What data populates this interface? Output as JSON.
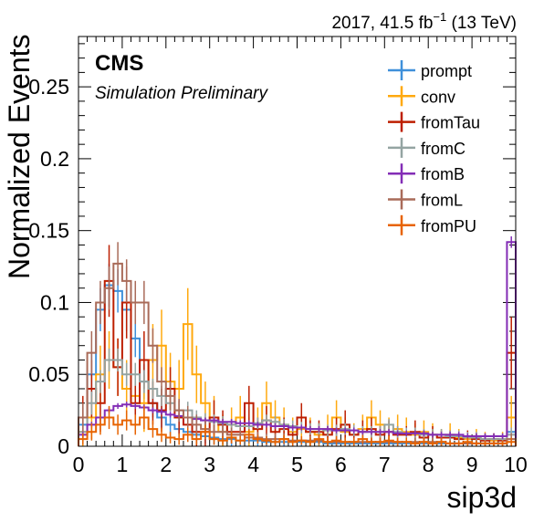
{
  "header": {
    "lumi_left": "2017, 41.5 fb",
    "lumi_exp": "−1",
    "lumi_right": " (13 TeV)",
    "experiment": "CMS",
    "status": "Simulation Preliminary"
  },
  "chart_data": {
    "type": "histogram-step",
    "xlabel": "sip3d",
    "ylabel": "Normalized Events",
    "xlim": [
      0,
      10
    ],
    "ylim": [
      0,
      0.285
    ],
    "xticks": [
      "0",
      "1",
      "2",
      "3",
      "4",
      "5",
      "6",
      "7",
      "8",
      "9",
      "10"
    ],
    "yticks": [
      "0",
      "0.05",
      "0.1",
      "0.15",
      "0.2",
      "0.25"
    ],
    "ytick_values": [
      0,
      0.05,
      0.1,
      0.15,
      0.2,
      0.25
    ],
    "bins": {
      "n": 50,
      "width": 0.2,
      "start": 0
    },
    "legend_position": "top-right",
    "series": [
      {
        "name": "prompt",
        "color": "#3f90da",
        "values": [
          0.015,
          0.05,
          0.095,
          0.112,
          0.108,
          0.095,
          0.075,
          0.045,
          0.03,
          0.02,
          0.015,
          0.012,
          0.01,
          0.008,
          0.007,
          0.006,
          0.005,
          0.005,
          0.004,
          0.004,
          0.004,
          0.003,
          0.003,
          0.003,
          0.003,
          0.003,
          0.003,
          0.003,
          0.002,
          0.002,
          0.002,
          0.002,
          0.002,
          0.002,
          0.002,
          0.002,
          0.002,
          0.002,
          0.002,
          0.002,
          0.002,
          0.002,
          0.002,
          0.002,
          0.002,
          0.002,
          0.002,
          0.002,
          0.002,
          0.01
        ],
        "errors": [
          0.012,
          0.015,
          0.015,
          0.015,
          0.015,
          0.015,
          0.013,
          0.012,
          0.01,
          0.008,
          0.008,
          0.007,
          0.006,
          0.006,
          0.005,
          0.005,
          0.005,
          0.005,
          0.004,
          0.004,
          0.004,
          0.004,
          0.004,
          0.004,
          0.003,
          0.003,
          0.003,
          0.003,
          0.003,
          0.003,
          0.003,
          0.003,
          0.003,
          0.003,
          0.003,
          0.003,
          0.003,
          0.003,
          0.003,
          0.003,
          0.003,
          0.003,
          0.003,
          0.003,
          0.003,
          0.003,
          0.003,
          0.003,
          0.003,
          0.008
        ]
      },
      {
        "name": "conv",
        "color": "#ffa90e",
        "values": [
          0.01,
          0.02,
          0.05,
          0.06,
          0.055,
          0.04,
          0.035,
          0.03,
          0.06,
          0.07,
          0.045,
          0.04,
          0.085,
          0.05,
          0.03,
          0.02,
          0.01,
          0.015,
          0.02,
          0.01,
          0.015,
          0.03,
          0.02,
          0.015,
          0.01,
          0.012,
          0.01,
          0.008,
          0.012,
          0.02,
          0.01,
          0.008,
          0.012,
          0.02,
          0.015,
          0.01,
          0.012,
          0.01,
          0.008,
          0.01,
          0.008,
          0.006,
          0.008,
          0.006,
          0.005,
          0.006,
          0.005,
          0.004,
          0.005,
          0.02
        ],
        "errors": [
          0.012,
          0.015,
          0.02,
          0.02,
          0.02,
          0.02,
          0.02,
          0.02,
          0.025,
          0.025,
          0.02,
          0.02,
          0.025,
          0.02,
          0.015,
          0.015,
          0.012,
          0.012,
          0.015,
          0.01,
          0.012,
          0.015,
          0.012,
          0.012,
          0.01,
          0.01,
          0.01,
          0.008,
          0.01,
          0.012,
          0.01,
          0.008,
          0.01,
          0.012,
          0.01,
          0.01,
          0.01,
          0.01,
          0.008,
          0.008,
          0.008,
          0.006,
          0.008,
          0.006,
          0.005,
          0.006,
          0.005,
          0.005,
          0.005,
          0.015
        ]
      },
      {
        "name": "fromTau",
        "color": "#bd1f01",
        "values": [
          0.02,
          0.04,
          0.03,
          0.115,
          0.055,
          0.1,
          0.03,
          0.06,
          0.03,
          0.025,
          0.04,
          0.02,
          0.015,
          0.01,
          0.01,
          0.02,
          0.015,
          0.01,
          0.01,
          0.03,
          0.012,
          0.018,
          0.01,
          0.012,
          0.008,
          0.02,
          0.01,
          0.01,
          0.008,
          0.012,
          0.015,
          0.008,
          0.01,
          0.012,
          0.008,
          0.01,
          0.008,
          0.008,
          0.01,
          0.006,
          0.008,
          0.006,
          0.006,
          0.005,
          0.006,
          0.005,
          0.004,
          0.005,
          0.004,
          0.065
        ],
        "errors": [
          0.015,
          0.02,
          0.02,
          0.025,
          0.02,
          0.025,
          0.015,
          0.02,
          0.015,
          0.015,
          0.015,
          0.012,
          0.01,
          0.01,
          0.01,
          0.012,
          0.01,
          0.008,
          0.008,
          0.012,
          0.008,
          0.01,
          0.008,
          0.008,
          0.006,
          0.01,
          0.008,
          0.008,
          0.006,
          0.008,
          0.01,
          0.006,
          0.008,
          0.008,
          0.006,
          0.008,
          0.006,
          0.006,
          0.008,
          0.005,
          0.006,
          0.005,
          0.005,
          0.005,
          0.005,
          0.004,
          0.004,
          0.004,
          0.004,
          0.025
        ]
      },
      {
        "name": "fromC",
        "color": "#94a4a2",
        "values": [
          0.01,
          0.03,
          0.045,
          0.06,
          0.06,
          0.05,
          0.05,
          0.045,
          0.04,
          0.035,
          0.03,
          0.025,
          0.025,
          0.02,
          0.018,
          0.017,
          0.016,
          0.015,
          0.014,
          0.014,
          0.016,
          0.018,
          0.017,
          0.015,
          0.014,
          0.013,
          0.012,
          0.012,
          0.011,
          0.011,
          0.012,
          0.011,
          0.01,
          0.01,
          0.01,
          0.015,
          0.01,
          0.009,
          0.009,
          0.008,
          0.008,
          0.008,
          0.007,
          0.007,
          0.006,
          0.006,
          0.005,
          0.005,
          0.005,
          0.008
        ],
        "errors": [
          0.006,
          0.008,
          0.008,
          0.008,
          0.008,
          0.008,
          0.008,
          0.008,
          0.007,
          0.007,
          0.006,
          0.006,
          0.006,
          0.005,
          0.005,
          0.005,
          0.005,
          0.004,
          0.004,
          0.004,
          0.004,
          0.004,
          0.004,
          0.004,
          0.004,
          0.004,
          0.004,
          0.004,
          0.004,
          0.004,
          0.004,
          0.004,
          0.004,
          0.004,
          0.004,
          0.004,
          0.004,
          0.004,
          0.004,
          0.004,
          0.004,
          0.004,
          0.004,
          0.004,
          0.004,
          0.004,
          0.004,
          0.004,
          0.004,
          0.005
        ]
      },
      {
        "name": "fromB",
        "color": "#832db6",
        "values": [
          0.008,
          0.015,
          0.02,
          0.025,
          0.028,
          0.029,
          0.028,
          0.027,
          0.025,
          0.024,
          0.022,
          0.021,
          0.02,
          0.019,
          0.018,
          0.018,
          0.017,
          0.017,
          0.016,
          0.016,
          0.015,
          0.015,
          0.014,
          0.014,
          0.013,
          0.013,
          0.012,
          0.012,
          0.012,
          0.011,
          0.011,
          0.011,
          0.01,
          0.01,
          0.01,
          0.01,
          0.009,
          0.009,
          0.009,
          0.009,
          0.008,
          0.008,
          0.008,
          0.008,
          0.007,
          0.007,
          0.007,
          0.007,
          0.007,
          0.142
        ],
        "errors": [
          0.002,
          0.002,
          0.002,
          0.002,
          0.002,
          0.002,
          0.002,
          0.002,
          0.002,
          0.002,
          0.002,
          0.002,
          0.002,
          0.002,
          0.002,
          0.002,
          0.002,
          0.002,
          0.002,
          0.002,
          0.002,
          0.002,
          0.002,
          0.002,
          0.002,
          0.002,
          0.002,
          0.002,
          0.002,
          0.002,
          0.002,
          0.002,
          0.002,
          0.002,
          0.002,
          0.002,
          0.002,
          0.002,
          0.002,
          0.002,
          0.002,
          0.002,
          0.002,
          0.002,
          0.002,
          0.002,
          0.002,
          0.002,
          0.002,
          0.004
        ]
      },
      {
        "name": "fromL",
        "color": "#a96b59",
        "values": [
          0.02,
          0.065,
          0.1,
          0.11,
          0.127,
          0.115,
          0.1,
          0.1,
          0.07,
          0.045,
          0.035,
          0.025,
          0.02,
          0.015,
          0.012,
          0.01,
          0.01,
          0.008,
          0.008,
          0.006,
          0.006,
          0.005,
          0.005,
          0.005,
          0.004,
          0.004,
          0.004,
          0.004,
          0.003,
          0.003,
          0.003,
          0.003,
          0.003,
          0.003,
          0.003,
          0.003,
          0.003,
          0.003,
          0.003,
          0.003,
          0.003,
          0.003,
          0.002,
          0.002,
          0.002,
          0.002,
          0.002,
          0.002,
          0.002,
          0.005
        ],
        "errors": [
          0.01,
          0.015,
          0.015,
          0.015,
          0.015,
          0.015,
          0.015,
          0.015,
          0.012,
          0.01,
          0.01,
          0.008,
          0.008,
          0.007,
          0.006,
          0.005,
          0.005,
          0.005,
          0.005,
          0.004,
          0.004,
          0.004,
          0.004,
          0.004,
          0.003,
          0.003,
          0.003,
          0.003,
          0.003,
          0.003,
          0.003,
          0.003,
          0.003,
          0.003,
          0.003,
          0.003,
          0.003,
          0.003,
          0.003,
          0.003,
          0.003,
          0.003,
          0.002,
          0.002,
          0.002,
          0.002,
          0.002,
          0.002,
          0.002,
          0.004
        ]
      },
      {
        "name": "fromPU",
        "color": "#e76300",
        "values": [
          0.005,
          0.01,
          0.015,
          0.02,
          0.015,
          0.018,
          0.015,
          0.02,
          0.012,
          0.008,
          0.006,
          0.005,
          0.008,
          0.005,
          0.01,
          0.005,
          0.004,
          0.006,
          0.004,
          0.008,
          0.005,
          0.004,
          0.003,
          0.005,
          0.003,
          0.004,
          0.003,
          0.005,
          0.003,
          0.004,
          0.003,
          0.003,
          0.005,
          0.003,
          0.003,
          0.004,
          0.003,
          0.003,
          0.002,
          0.003,
          0.002,
          0.003,
          0.002,
          0.002,
          0.003,
          0.002,
          0.002,
          0.002,
          0.002,
          0.003
        ],
        "errors": [
          0.004,
          0.006,
          0.007,
          0.008,
          0.007,
          0.007,
          0.007,
          0.008,
          0.006,
          0.005,
          0.004,
          0.004,
          0.005,
          0.004,
          0.005,
          0.004,
          0.003,
          0.004,
          0.003,
          0.004,
          0.003,
          0.003,
          0.003,
          0.003,
          0.003,
          0.003,
          0.003,
          0.003,
          0.003,
          0.003,
          0.003,
          0.003,
          0.003,
          0.003,
          0.003,
          0.003,
          0.003,
          0.003,
          0.002,
          0.003,
          0.002,
          0.003,
          0.002,
          0.002,
          0.003,
          0.002,
          0.002,
          0.002,
          0.002,
          0.003
        ]
      }
    ]
  }
}
